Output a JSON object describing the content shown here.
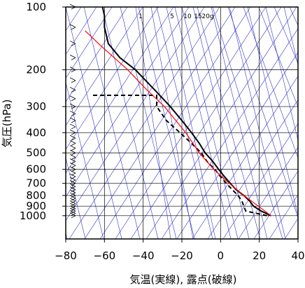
{
  "chart_data": {
    "type": "line",
    "subtype": "skew-t log-p thermodynamic diagram",
    "xlabel": "気温(実線), 露点(破線)",
    "ylabel": "気圧(hPa)",
    "x_ticks": [
      -80,
      -60,
      -40,
      -20,
      0,
      20,
      40
    ],
    "y_ticks": [
      100,
      200,
      300,
      400,
      500,
      600,
      700,
      800,
      900,
      1000
    ],
    "xlim": [
      -80,
      40
    ],
    "ylim_hPa": [
      1050,
      100
    ],
    "y_scale": "log",
    "grid": true,
    "mixing_ratio_labels": [
      "1",
      "5",
      "10",
      "15",
      "20g"
    ],
    "series": [
      {
        "style": "solid",
        "color": "#000000",
        "points": [
          [
            1000,
            26
          ],
          [
            950,
            21
          ],
          [
            925,
            19
          ],
          [
            900,
            17
          ],
          [
            850,
            15
          ],
          [
            800,
            12
          ],
          [
            750,
            8
          ],
          [
            700,
            5
          ],
          [
            650,
            2
          ],
          [
            600,
            -1
          ],
          [
            550,
            -4
          ],
          [
            500,
            -8
          ],
          [
            450,
            -11
          ],
          [
            400,
            -15
          ],
          [
            350,
            -20
          ],
          [
            300,
            -26
          ],
          [
            250,
            -34
          ],
          [
            200,
            -44
          ],
          [
            175,
            -52
          ],
          [
            150,
            -58
          ],
          [
            125,
            -60
          ],
          [
            110,
            -60
          ],
          [
            100,
            -61
          ]
        ]
      },
      {
        "style": "dashed",
        "color": "#000000",
        "points": [
          [
            1000,
            24
          ],
          [
            950,
            13
          ],
          [
            900,
            12
          ],
          [
            850,
            11
          ],
          [
            800,
            9
          ],
          [
            750,
            6
          ],
          [
            700,
            3
          ],
          [
            650,
            0
          ],
          [
            600,
            -3
          ],
          [
            550,
            -7
          ],
          [
            500,
            -10
          ],
          [
            450,
            -15
          ],
          [
            400,
            -21
          ],
          [
            350,
            -28
          ],
          [
            300,
            -33
          ],
          [
            265,
            -33
          ],
          [
            265,
            -67
          ]
        ]
      },
      {
        "style": "solid",
        "color": "#ff0000",
        "points": [
          [
            1000,
            26
          ],
          [
            900,
            19.5
          ],
          [
            800,
            12
          ],
          [
            700,
            4.5
          ],
          [
            600,
            -3.5
          ],
          [
            500,
            -11
          ],
          [
            400,
            -18
          ],
          [
            300,
            -29
          ],
          [
            250,
            -38
          ],
          [
            200,
            -48
          ],
          [
            150,
            -63
          ],
          [
            130,
            -70
          ]
        ]
      }
    ],
    "wind_barbs_hPa": [
      1000,
      975,
      950,
      925,
      900,
      875,
      850,
      825,
      800,
      775,
      750,
      725,
      700,
      675,
      650,
      625,
      600,
      575,
      550,
      525,
      500,
      475,
      450,
      425,
      400,
      375,
      350,
      325,
      300,
      275,
      250,
      225,
      200,
      175,
      150,
      125,
      100
    ]
  }
}
